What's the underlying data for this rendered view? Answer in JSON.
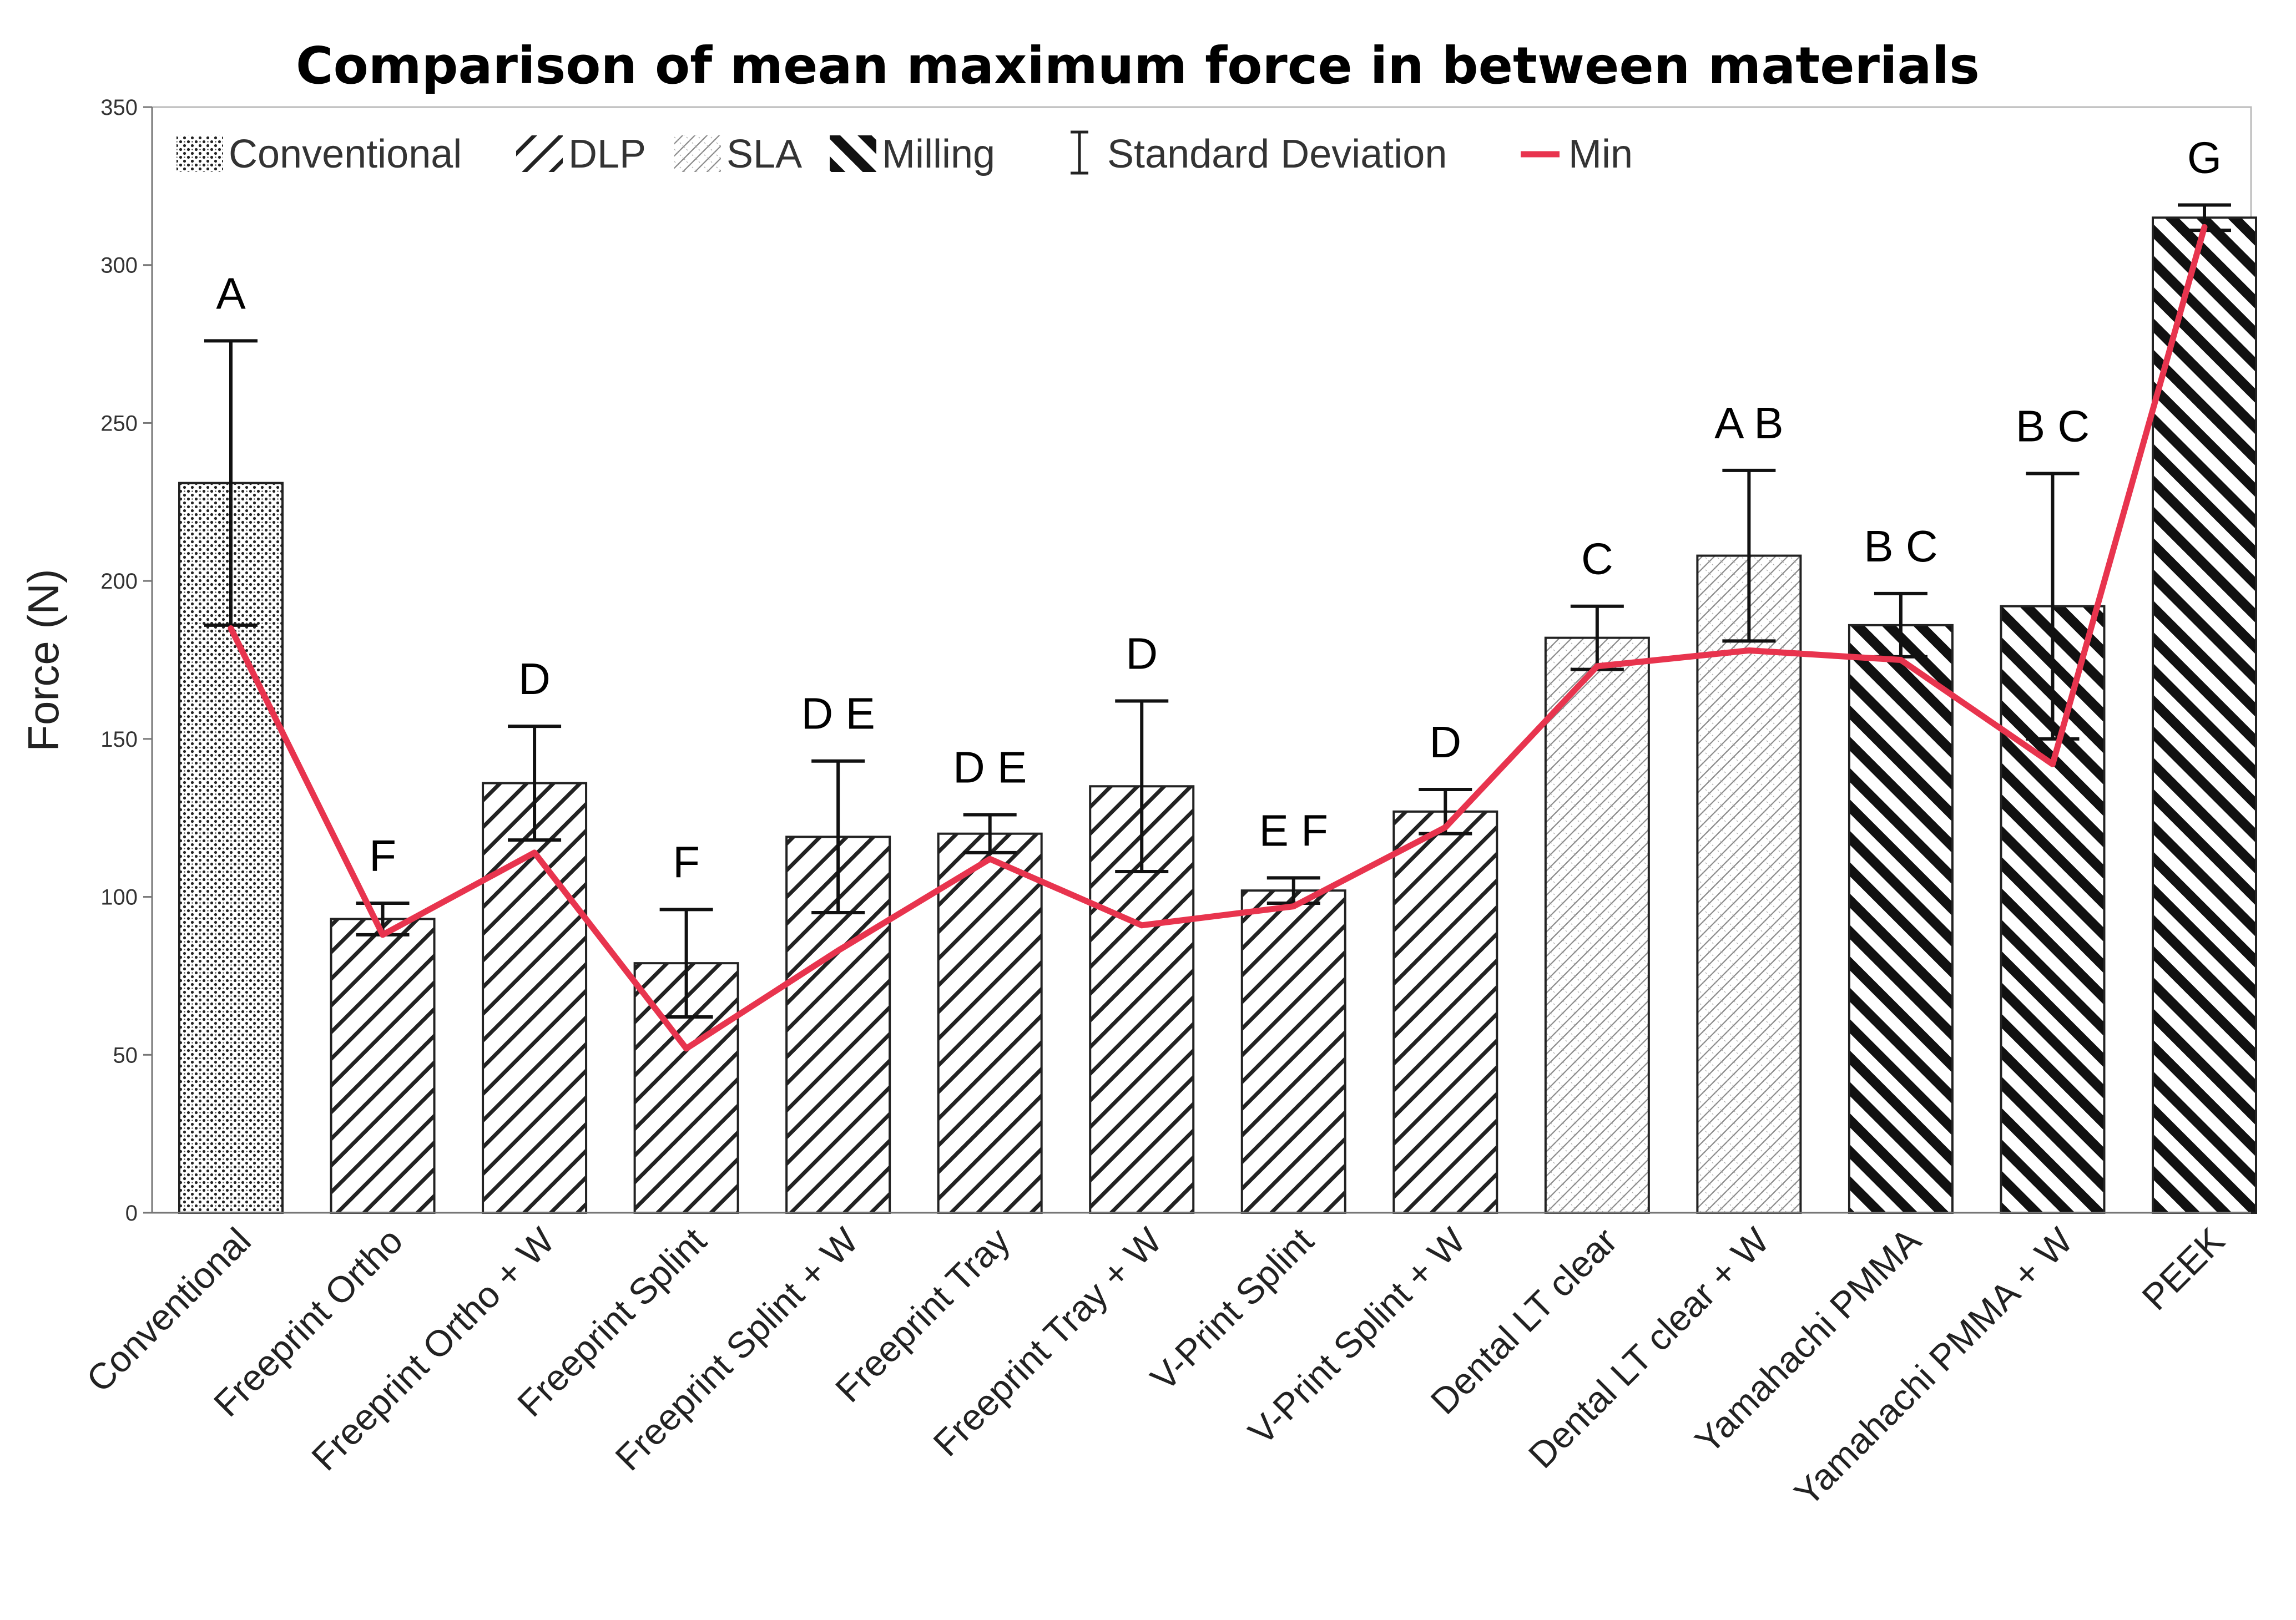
{
  "chart_data": {
    "type": "bar",
    "title": "Comparison of mean maximum force in between materials",
    "xlabel": "",
    "ylabel": "Force (N)",
    "ylim": [
      0,
      350
    ],
    "yticks": [
      0,
      50,
      100,
      150,
      200,
      250,
      300,
      350
    ],
    "grid": false,
    "legend_position": "top",
    "legend": [
      {
        "label": "Conventional",
        "pattern": "dots"
      },
      {
        "label": "DLP",
        "pattern": "diag-down"
      },
      {
        "label": "SLA",
        "pattern": "crosshatch-light"
      },
      {
        "label": "Milling",
        "pattern": "diag-up-thick"
      },
      {
        "label": "Standard Deviation",
        "pattern": "errorbar"
      },
      {
        "label": "Min",
        "pattern": "line",
        "color": "#e8344e"
      }
    ],
    "categories": [
      "Conventional",
      "Freeprint Ortho",
      "Freeprint Ortho + W",
      "Freeprint Splint",
      "Freeprint Splint + W",
      "Freeprint Tray",
      "Freeprint Tray + W",
      "V-Print Splint",
      "V-Print Splint + W",
      "Dental LT clear",
      "Dental LT clear + W",
      "Yamahachi PMMA",
      "Yamahachi PMMA + W",
      "PEEK"
    ],
    "groups": [
      "Conventional",
      "DLP",
      "DLP",
      "DLP",
      "DLP",
      "DLP",
      "DLP",
      "DLP",
      "DLP",
      "SLA",
      "SLA",
      "Milling",
      "Milling",
      "Milling"
    ],
    "series": [
      {
        "name": "Mean",
        "values": [
          231,
          93,
          136,
          79,
          119,
          120,
          135,
          102,
          127,
          182,
          208,
          186,
          192,
          315
        ]
      },
      {
        "name": "Standard Deviation",
        "values": [
          45,
          5,
          18,
          17,
          24,
          6,
          27,
          4,
          7,
          10,
          27,
          10,
          42,
          4
        ]
      },
      {
        "name": "Min",
        "values": [
          185,
          88,
          114,
          52,
          83,
          112,
          91,
          97,
          122,
          173,
          178,
          175,
          142,
          312
        ]
      }
    ],
    "significance_letters": [
      "A",
      "F",
      "D",
      "F",
      "D E",
      "D E",
      "D",
      "E F",
      "D",
      "C",
      "A B",
      "B C",
      "B C",
      "G"
    ],
    "colors": {
      "min_line": "#e8344e",
      "bar_stroke": "#222222",
      "axis": "#777777"
    }
  }
}
